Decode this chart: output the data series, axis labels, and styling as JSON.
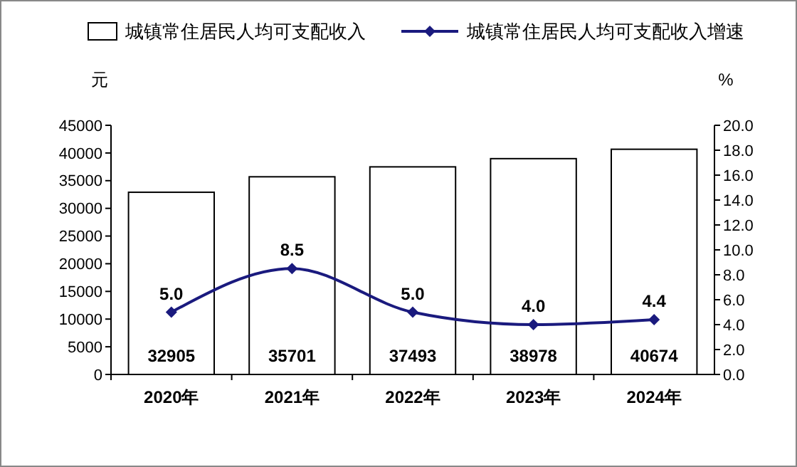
{
  "chart_data": {
    "type": "bar",
    "categories": [
      "2020年",
      "2021年",
      "2022年",
      "2023年",
      "2024年"
    ],
    "ylabel": "元",
    "y2label": "%",
    "series": [
      {
        "name": "城镇常住居民人均可支配收入",
        "color": "#ffffff",
        "values": [
          32905,
          35701,
          37493,
          38978,
          40674
        ],
        "value_labels": [
          "32905",
          "35701",
          "37493",
          "38978",
          "40674"
        ]
      },
      {
        "name": "城镇常住居民人均可支配收入增速",
        "type": "line",
        "axis": "y2",
        "color": "#1a1a7e",
        "marker": "diamond",
        "values": [
          5.0,
          8.5,
          5.0,
          4.0,
          4.4
        ],
        "value_labels": [
          "5.0",
          "8.5",
          "5.0",
          "4.0",
          "4.4"
        ]
      }
    ],
    "ylim": [
      0,
      45000
    ],
    "yticks": [
      0,
      5000,
      10000,
      15000,
      20000,
      25000,
      30000,
      35000,
      40000,
      45000
    ],
    "y2lim": [
      0,
      20
    ],
    "y2ticks": [
      {
        "value": 0,
        "label": "0.0"
      },
      {
        "value": 2,
        "label": "2.0"
      },
      {
        "value": 4,
        "label": "4.0"
      },
      {
        "value": 6,
        "label": "6.0"
      },
      {
        "value": 8,
        "label": "8.0"
      },
      {
        "value": 10,
        "label": "10.0"
      },
      {
        "value": 12,
        "label": "12.0"
      },
      {
        "value": 14,
        "label": "14.0"
      },
      {
        "value": 16,
        "label": "16.0"
      },
      {
        "value": 18,
        "label": "18.0"
      },
      {
        "value": 20,
        "label": "20.0"
      }
    ],
    "legend": "top",
    "grid": false
  }
}
